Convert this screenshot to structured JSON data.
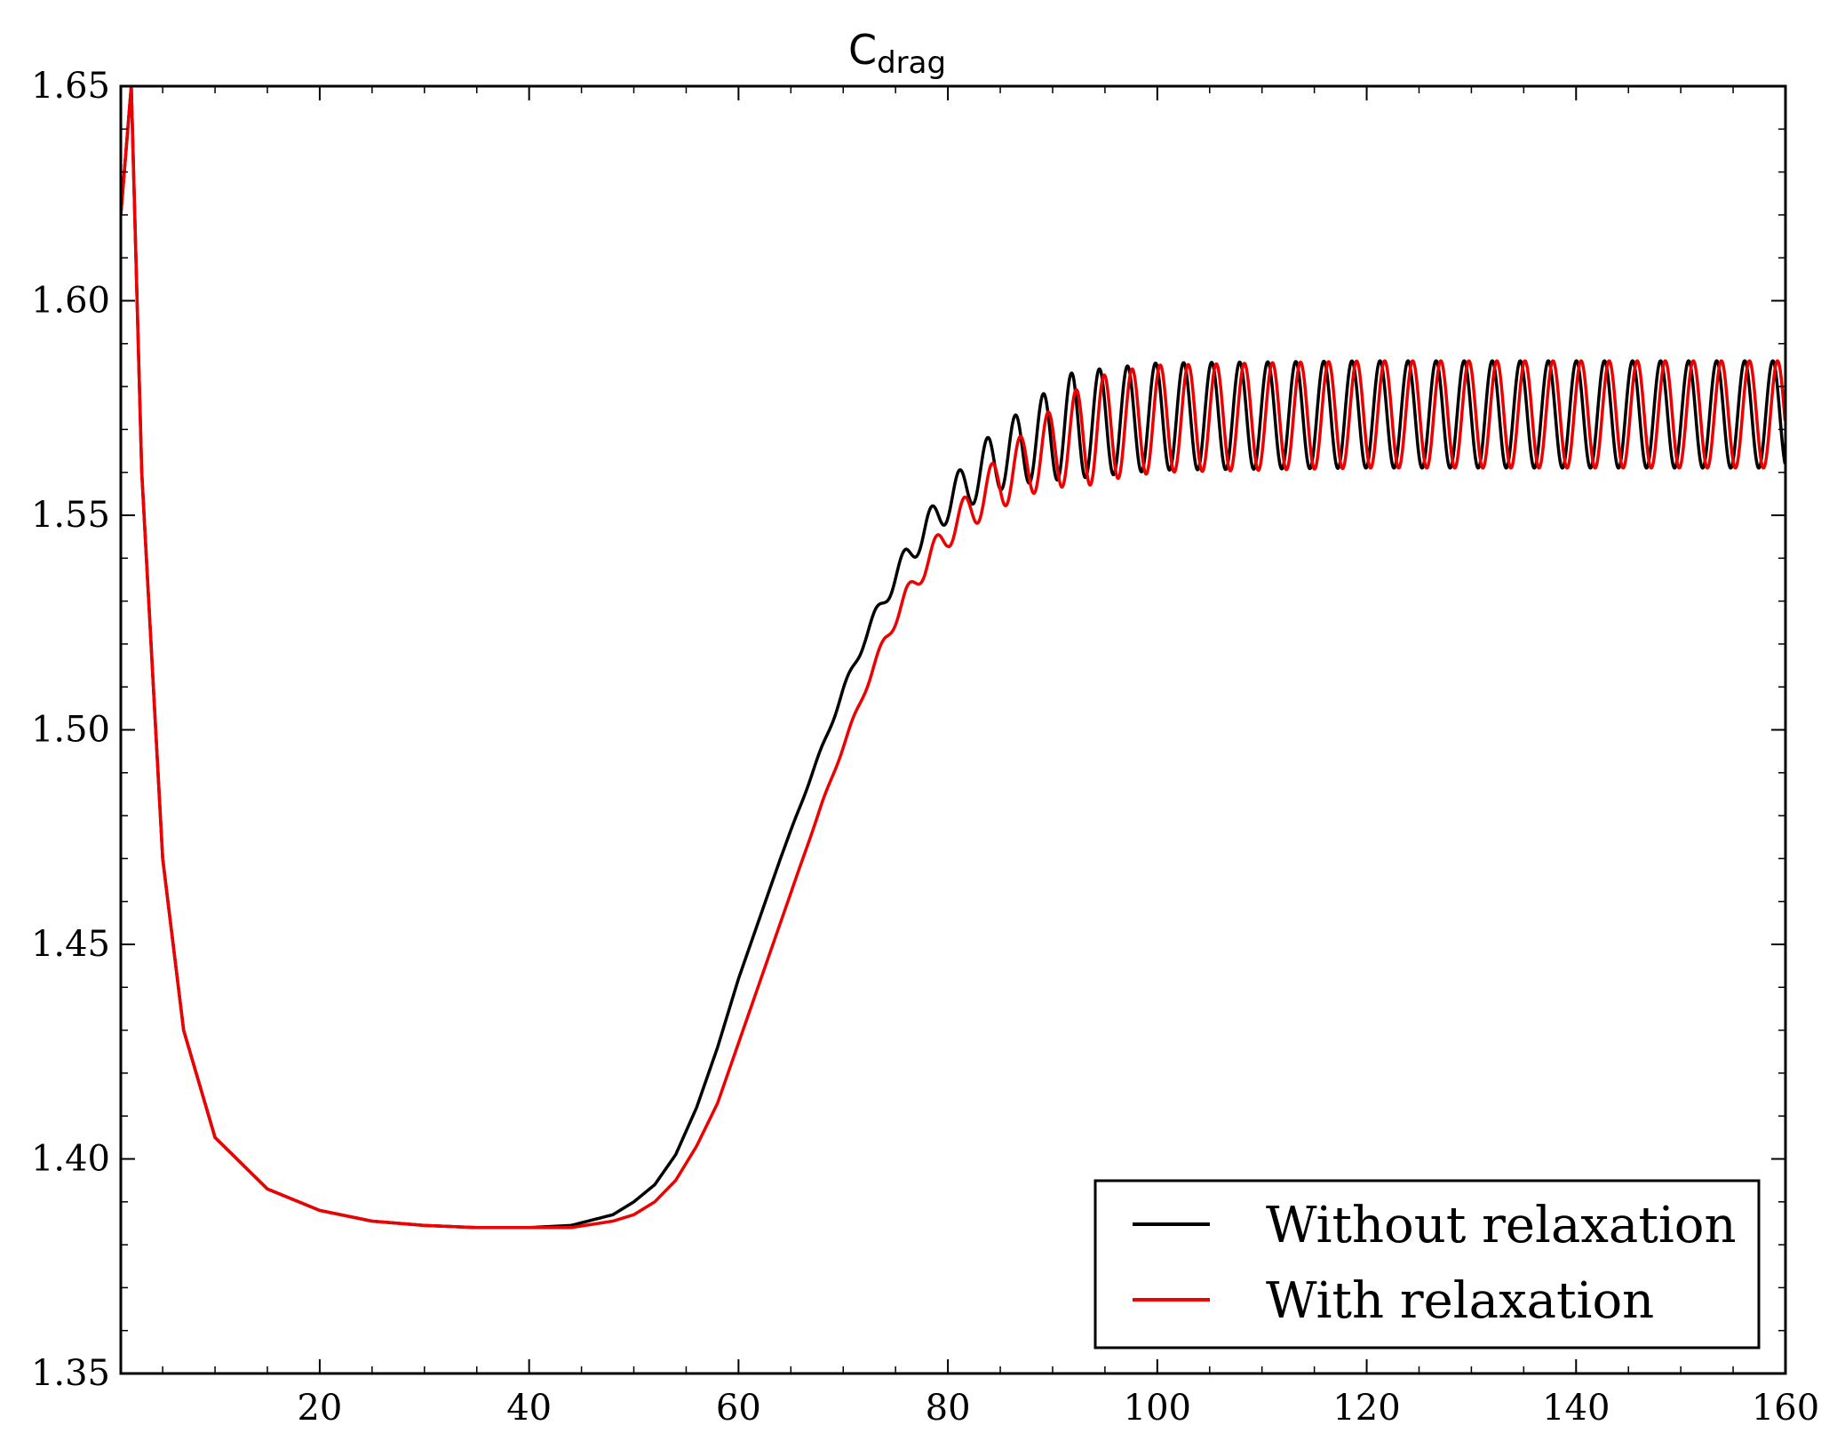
{
  "chart_data": {
    "type": "line",
    "title": "C",
    "title_subscript": "drag",
    "xlabel": "",
    "ylabel": "",
    "xlim": [
      1,
      160
    ],
    "ylim": [
      1.35,
      1.65
    ],
    "x_ticks": [
      20,
      40,
      60,
      80,
      100,
      120,
      140,
      160
    ],
    "x_tick_labels": [
      "20",
      "40",
      "60",
      "80",
      "100",
      "120",
      "140",
      "160"
    ],
    "y_ticks": [
      1.35,
      1.4,
      1.45,
      1.5,
      1.55,
      1.6,
      1.65
    ],
    "y_tick_labels": [
      "1.35",
      "1.40",
      "1.45",
      "1.50",
      "1.55",
      "1.60",
      "1.65"
    ],
    "grid": false,
    "legend_position": "bottom-right",
    "series": [
      {
        "name": "Without relaxation",
        "color": "#000000",
        "sampled_x": [
          1,
          2,
          3,
          5,
          7,
          10,
          15,
          20,
          25,
          30,
          35,
          40,
          44,
          48,
          50,
          52,
          54,
          56,
          58,
          60,
          62,
          64,
          66,
          68,
          70,
          72,
          74,
          76,
          78,
          80,
          84,
          88,
          92,
          96,
          100,
          120,
          140,
          160
        ],
        "sampled_y": [
          1.62,
          1.65,
          1.56,
          1.47,
          1.43,
          1.405,
          1.393,
          1.388,
          1.3855,
          1.3845,
          1.384,
          1.384,
          1.3845,
          1.387,
          1.39,
          1.394,
          1.401,
          1.412,
          1.426,
          1.442,
          1.456,
          1.47,
          1.483,
          1.496,
          1.509,
          1.521,
          1.531,
          1.54,
          1.547,
          1.553,
          1.562,
          1.567,
          1.571,
          1.572,
          1.573,
          1.5735,
          1.5735,
          1.5735
        ],
        "oscillation": {
          "onset_x": 62,
          "period": 2.68,
          "max_amplitude": 0.0125
        },
        "steady_max": 1.586,
        "steady_min": 1.561
      },
      {
        "name": "With relaxation",
        "color": "#ee0000",
        "sampled_x": [
          1,
          2,
          3,
          5,
          7,
          10,
          15,
          20,
          25,
          30,
          35,
          40,
          44,
          48,
          50,
          52,
          54,
          56,
          58,
          60,
          62,
          64,
          66,
          68,
          70,
          72,
          74,
          76,
          78,
          80,
          84,
          88,
          92,
          96,
          100,
          120,
          140,
          160
        ],
        "sampled_y": [
          1.62,
          1.65,
          1.56,
          1.47,
          1.43,
          1.405,
          1.393,
          1.388,
          1.3855,
          1.3845,
          1.384,
          1.384,
          1.384,
          1.3855,
          1.387,
          1.39,
          1.395,
          1.403,
          1.413,
          1.427,
          1.441,
          1.455,
          1.469,
          1.483,
          1.496,
          1.509,
          1.521,
          1.531,
          1.539,
          1.546,
          1.556,
          1.563,
          1.568,
          1.571,
          1.5725,
          1.5735,
          1.5735,
          1.5735
        ],
        "oscillation": {
          "onset_x": 64,
          "period": 2.68,
          "max_amplitude": 0.0125,
          "phase_shift_x": 0.45
        },
        "steady_max": 1.586,
        "steady_min": 1.561
      }
    ]
  }
}
